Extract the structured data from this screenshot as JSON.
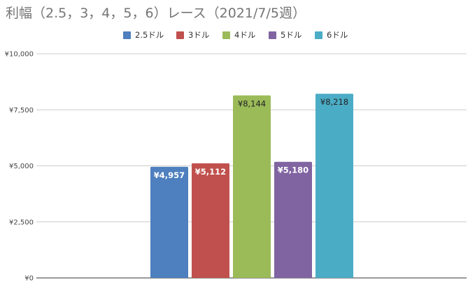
{
  "title": "利幅（2.5，3，4，5，6）レース（2021/7/5週）",
  "chart_data": {
    "type": "bar",
    "title": "利幅（2.5，3，4，5，6）レース（2021/7/5週）",
    "xlabel": "",
    "ylabel": "",
    "ylim": [
      0,
      10000
    ],
    "yticks": [
      0,
      2500,
      5000,
      7500,
      10000
    ],
    "ytick_labels": [
      "¥0",
      "¥2,500",
      "¥5,000",
      "¥7,500",
      "¥10,000"
    ],
    "grid": true,
    "legend_position": "top-center",
    "series": [
      {
        "name": "2.5ドル",
        "value": 4957,
        "label": "¥4,957",
        "color": "#4e7fbe",
        "label_color": "#ffffff",
        "label_weight": "bold",
        "label_inside": true
      },
      {
        "name": "3ドル",
        "value": 5112,
        "label": "¥5,112",
        "color": "#c0504d",
        "label_color": "#ffffff",
        "label_weight": "bold",
        "label_inside": true
      },
      {
        "name": "4ドル",
        "value": 8144,
        "label": "¥8,144",
        "color": "#9bbb59",
        "label_color": "#222222",
        "label_weight": "normal",
        "label_inside": true
      },
      {
        "name": "5ドル",
        "value": 5180,
        "label": "¥5,180",
        "color": "#8064a2",
        "label_color": "#ffffff",
        "label_weight": "bold",
        "label_inside": true
      },
      {
        "name": "6ドル",
        "value": 8218,
        "label": "¥8,218",
        "color": "#4bacc6",
        "label_color": "#222222",
        "label_weight": "normal",
        "label_inside": true
      }
    ]
  }
}
